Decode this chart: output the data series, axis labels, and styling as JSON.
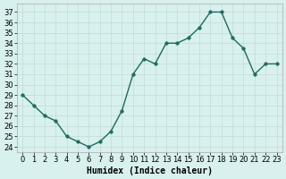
{
  "x": [
    0,
    1,
    2,
    3,
    4,
    5,
    6,
    7,
    8,
    9,
    10,
    11,
    12,
    13,
    14,
    15,
    16,
    17,
    18,
    19,
    20,
    21,
    22,
    23
  ],
  "y": [
    29,
    28,
    27,
    26.5,
    25,
    24.5,
    24,
    24.5,
    25.5,
    27.5,
    31,
    32.5,
    32,
    34,
    34,
    34.5,
    35.5,
    37,
    37,
    34.5,
    33.5,
    31,
    32,
    32
  ],
  "xlabel": "Humidex (Indice chaleur)",
  "xlim": [
    -0.5,
    23.5
  ],
  "ylim": [
    23.5,
    37.8
  ],
  "yticks": [
    24,
    25,
    26,
    27,
    28,
    29,
    30,
    31,
    32,
    33,
    34,
    35,
    36,
    37
  ],
  "xtick_labels": [
    "0",
    "1",
    "2",
    "3",
    "4",
    "5",
    "6",
    "7",
    "8",
    "9",
    "10",
    "11",
    "12",
    "13",
    "14",
    "15",
    "16",
    "17",
    "18",
    "19",
    "20",
    "21",
    "22",
    "23"
  ],
  "line_color": "#1e6b5e",
  "bg_color": "#d8f0ee",
  "grid_color": "#c0dcd8",
  "marker_size": 2.5,
  "line_width": 1.0,
  "tick_fontsize": 6,
  "xlabel_fontsize": 7
}
